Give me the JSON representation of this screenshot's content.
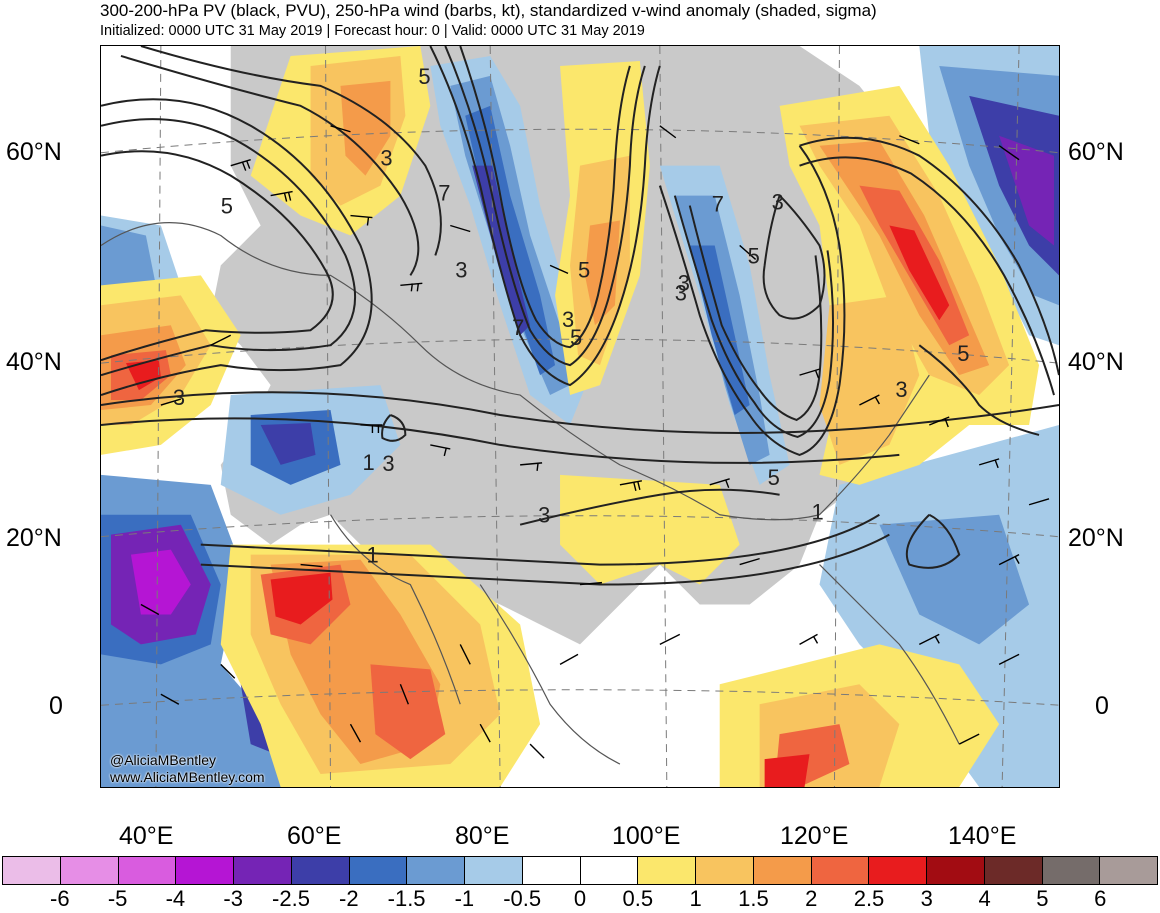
{
  "header": {
    "title": "300-200-hPa PV (black, PVU), 250-hPa wind (barbs, kt), standardized v-wind anomaly (shaded, sigma)",
    "subtitle": "Initialized: 0000 UTC 31 May 2019 | Forecast hour: 0 | Valid: 0000 UTC 31 May 2019"
  },
  "map": {
    "latitude_labels": [
      "60°N",
      "40°N",
      "20°N",
      "0"
    ],
    "longitude_labels": [
      "40°E",
      "60°E",
      "80°E",
      "100°E",
      "120°E",
      "140°E"
    ],
    "contour_labels": [
      "5",
      "3",
      "5",
      "7",
      "3",
      "7",
      "3",
      "5",
      "3",
      "5",
      "3",
      "1",
      "3",
      "5",
      "3",
      "1",
      "5",
      "3",
      "1",
      "7",
      "5",
      "3",
      "3"
    ],
    "credit": [
      "@AliciaMBentley",
      "www.AliciaMBentley.com"
    ]
  },
  "colorbar": {
    "colors": [
      "#ebbde8",
      "#e68ee6",
      "#d95cdf",
      "#b515d4",
      "#7524b5",
      "#3d3ea8",
      "#3a6ec0",
      "#6b9bd2",
      "#a6cbe8",
      "#ffffff",
      "#ffffff",
      "#fbe76c",
      "#f8c45f",
      "#f49b4a",
      "#ef6540",
      "#e81c1e",
      "#a20c12",
      "#6c2a28",
      "#756c6a",
      "#a89b99"
    ],
    "labels": [
      "-6",
      "-5",
      "-4",
      "-3",
      "-2.5",
      "-2",
      "-1.5",
      "-1",
      "-0.5",
      "0",
      "0.5",
      "1",
      "1.5",
      "2",
      "2.5",
      "3",
      "4",
      "5",
      "6"
    ]
  }
}
